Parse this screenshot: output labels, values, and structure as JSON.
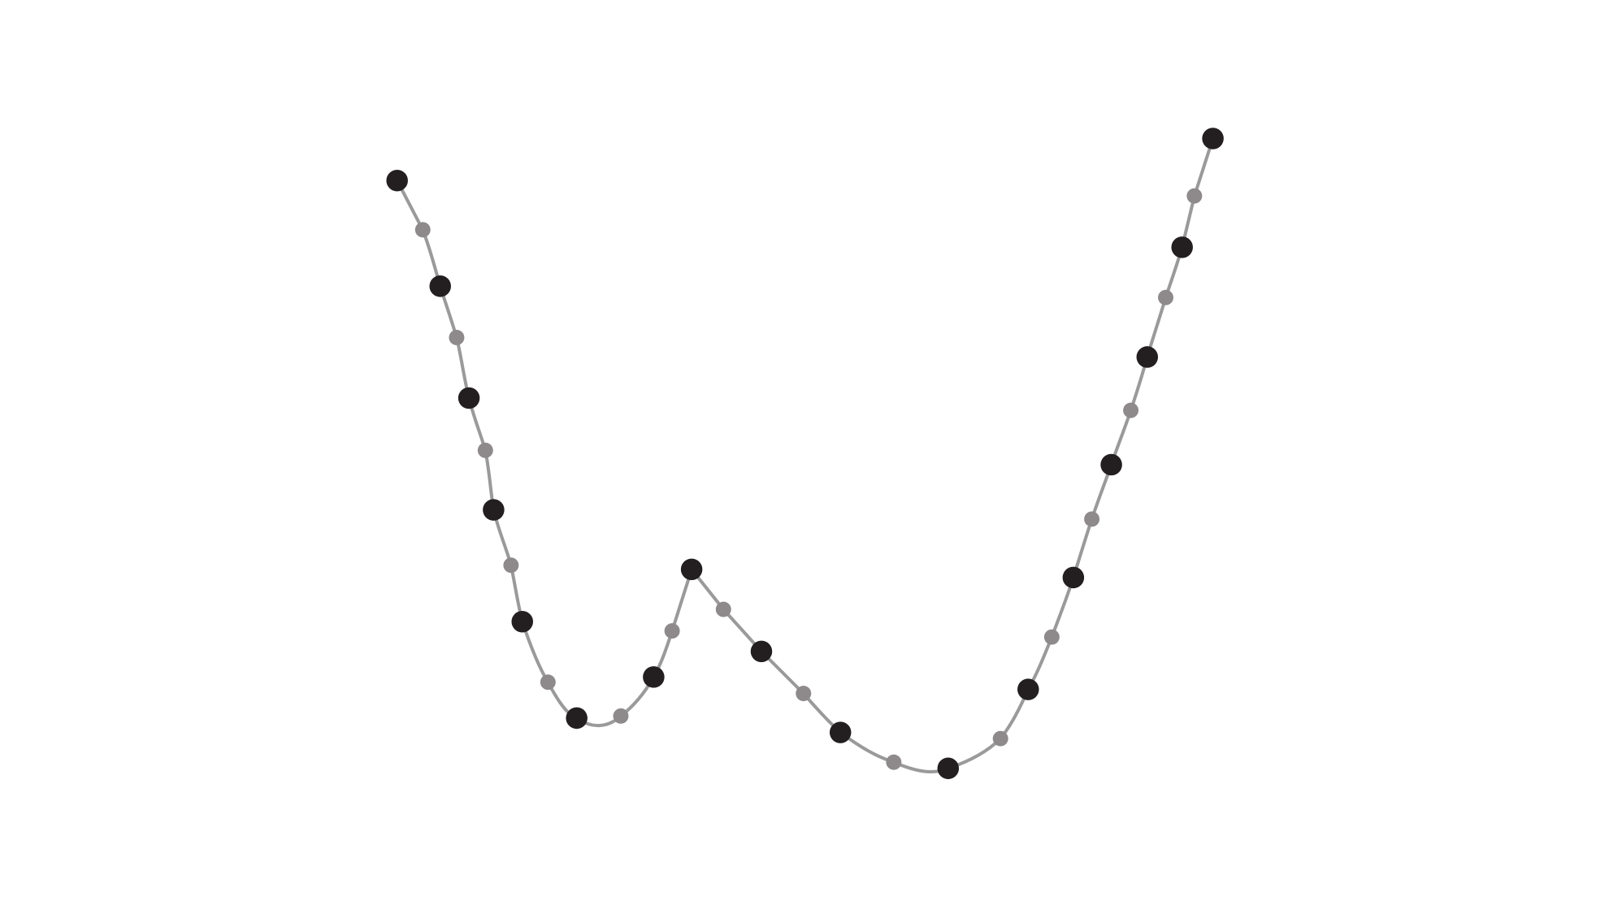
{
  "diagram": {
    "type": "sampled-curve",
    "curve_color": "#9a9a9a",
    "large_point_color": "#231f20",
    "small_point_color": "#8e8a8b",
    "points": [
      {
        "kind": "large"
      },
      {
        "kind": "small"
      },
      {
        "kind": "large"
      },
      {
        "kind": "small"
      },
      {
        "kind": "large"
      },
      {
        "kind": "small"
      },
      {
        "kind": "large"
      },
      {
        "kind": "small"
      },
      {
        "kind": "large"
      },
      {
        "kind": "small"
      },
      {
        "kind": "large"
      },
      {
        "kind": "small"
      },
      {
        "kind": "large"
      },
      {
        "kind": "small"
      },
      {
        "kind": "large"
      },
      {
        "kind": "small"
      },
      {
        "kind": "large"
      },
      {
        "kind": "small"
      },
      {
        "kind": "large"
      },
      {
        "kind": "small"
      },
      {
        "kind": "large"
      },
      {
        "kind": "small"
      },
      {
        "kind": "large"
      },
      {
        "kind": "small"
      },
      {
        "kind": "large"
      },
      {
        "kind": "small"
      },
      {
        "kind": "large"
      },
      {
        "kind": "small"
      },
      {
        "kind": "large"
      },
      {
        "kind": "small"
      },
      {
        "kind": "large"
      },
      {
        "kind": "small"
      },
      {
        "kind": "large"
      },
      {
        "kind": "small"
      },
      {
        "kind": "large"
      }
    ]
  }
}
